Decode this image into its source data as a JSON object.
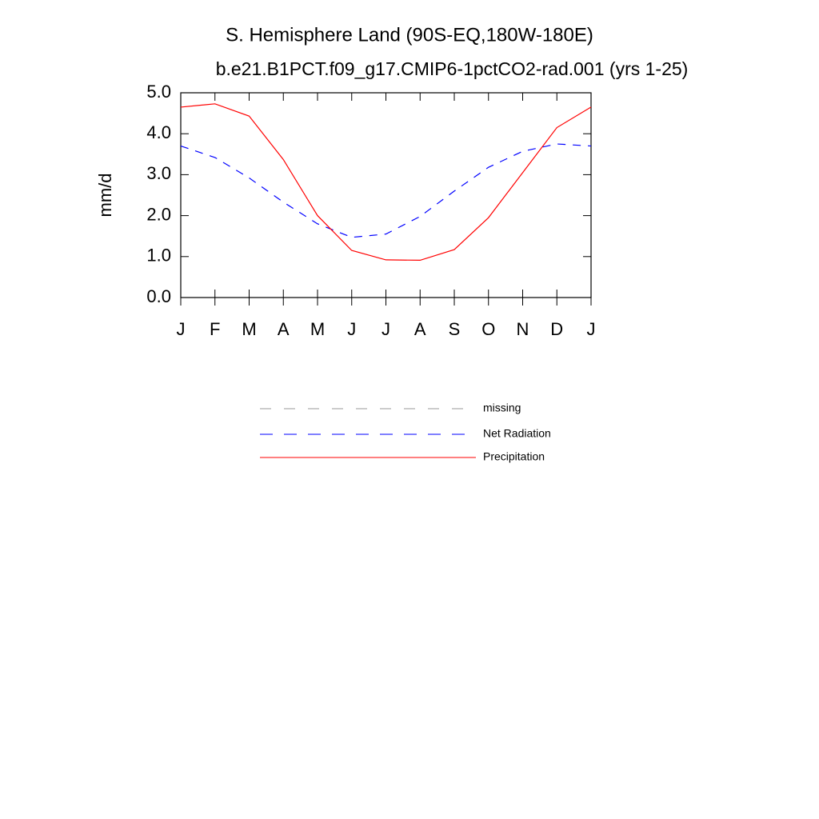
{
  "chart_data": {
    "type": "line",
    "title": "S. Hemisphere Land (90S-EQ,180W-180E)",
    "subtitle": "b.e21.B1PCT.f09_g17.CMIP6-1pctCO2-rad.001 (yrs 1-25)",
    "y_label": "mm/d",
    "categories": [
      "J",
      "F",
      "M",
      "A",
      "M",
      "J",
      "J",
      "A",
      "S",
      "O",
      "N",
      "D",
      "J"
    ],
    "series": [
      {
        "name": "missing",
        "color": "#999999",
        "dash": true,
        "values": [
          null,
          null,
          null,
          null,
          null,
          null,
          null,
          null,
          null,
          null,
          null,
          null,
          null
        ]
      },
      {
        "name": "Net Radiation",
        "color": "#0000ff",
        "dash": true,
        "values": [
          3.7,
          3.42,
          2.92,
          2.33,
          1.8,
          1.47,
          1.55,
          1.98,
          2.6,
          3.18,
          3.57,
          3.75,
          3.7
        ]
      },
      {
        "name": "Precipitation",
        "color": "#ff0000",
        "dash": false,
        "values": [
          4.65,
          4.73,
          4.43,
          3.37,
          2.0,
          1.15,
          0.92,
          0.91,
          1.17,
          1.95,
          3.05,
          4.15,
          4.65
        ]
      }
    ],
    "ylim": [
      0,
      5
    ],
    "yticks": [
      {
        "value": 0,
        "label": "0.0"
      },
      {
        "value": 1,
        "label": "1.0"
      },
      {
        "value": 2,
        "label": "2.0"
      },
      {
        "value": 3,
        "label": "3.0"
      },
      {
        "value": 4,
        "label": "4.0"
      },
      {
        "value": 5,
        "label": "5.0"
      }
    ],
    "legend": "below"
  }
}
